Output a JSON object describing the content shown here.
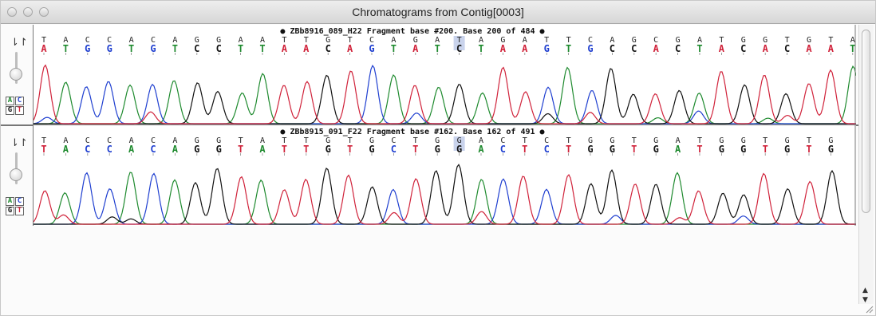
{
  "window": {
    "title": "Chromatograms from Contig[0003]"
  },
  "colors": {
    "A": "#1e8a2e",
    "C": "#1f3fd0",
    "G": "#111111",
    "T": "#d0223a"
  },
  "tracks": [
    {
      "header": "● ZBb8916_089_H22 Fragment base #200. Base 200 of 484 ●",
      "consensus": "TACCACAGGAATTGTCAGATAGATTCAGCGATGGTGTA",
      "read": "ATGGTGTCCTTAACAGTATCTAAGTGCCACTACACAAT",
      "highlight_index": 19,
      "readColorMap": "complement"
    },
    {
      "header": "● ZBb8915_091_F22 Fragment base #162. Base 162 of 491 ●",
      "consensus": "TACCACAGGTATTGTGCTGGACTCTGGTGATGGTGTG",
      "read": "TACCACAGGTATTGTGCTGGACTCTGGTGATGGTGTG",
      "highlight_index": 19,
      "readColorMap": "direct"
    }
  ],
  "controls": {
    "base_buttons": [
      "A",
      "C",
      "G",
      "T"
    ]
  }
}
